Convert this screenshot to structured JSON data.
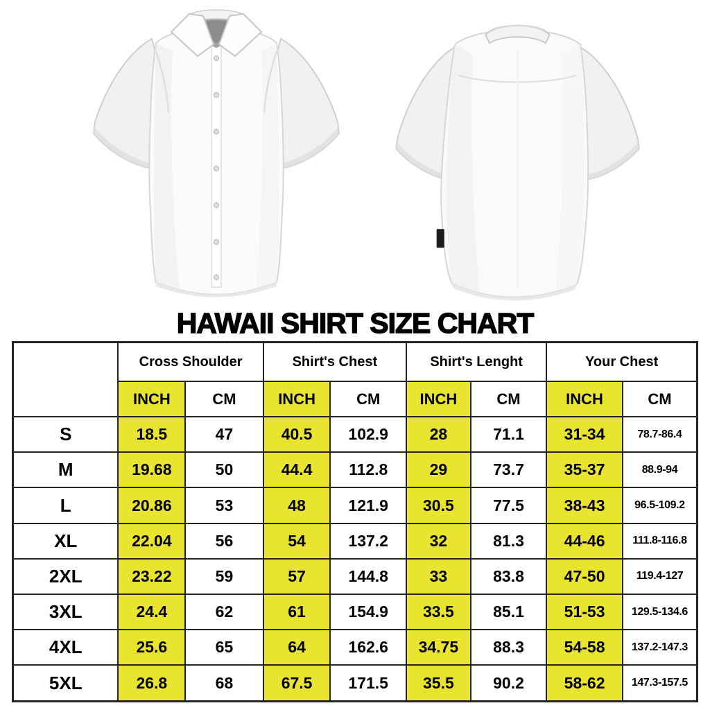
{
  "title": "HAWAII SHIRT SIZE CHART",
  "images": {
    "front_shirt": "white-short-sleeve-button-shirt-front-view",
    "back_shirt": "white-short-sleeve-button-shirt-back-view"
  },
  "colors": {
    "highlight_yellow": "#e9e42f",
    "table_border": "#242424",
    "text": "#000000",
    "background": "#ffffff"
  },
  "size_chart": {
    "corner_label": "",
    "column_groups": [
      "Cross Shoulder",
      "Shirt's Chest",
      "Shirt's Lenght",
      "Your Chest"
    ],
    "unit_labels": [
      "INCH",
      "CM"
    ],
    "rows": [
      {
        "size": "S",
        "values": [
          "18.5",
          "47",
          "40.5",
          "102.9",
          "28",
          "71.1",
          "31-34",
          "78.7-86.4"
        ]
      },
      {
        "size": "M",
        "values": [
          "19.68",
          "50",
          "44.4",
          "112.8",
          "29",
          "73.7",
          "35-37",
          "88.9-94"
        ]
      },
      {
        "size": "L",
        "values": [
          "20.86",
          "53",
          "48",
          "121.9",
          "30.5",
          "77.5",
          "38-43",
          "96.5-109.2"
        ]
      },
      {
        "size": "XL",
        "values": [
          "22.04",
          "56",
          "54",
          "137.2",
          "32",
          "81.3",
          "44-46",
          "111.8-116.8"
        ]
      },
      {
        "size": "2XL",
        "values": [
          "23.22",
          "59",
          "57",
          "144.8",
          "33",
          "83.8",
          "47-50",
          "119.4-127"
        ]
      },
      {
        "size": "3XL",
        "values": [
          "24.4",
          "62",
          "61",
          "154.9",
          "33.5",
          "85.1",
          "51-53",
          "129.5-134.6"
        ]
      },
      {
        "size": "4XL",
        "values": [
          "25.6",
          "65",
          "64",
          "162.6",
          "34.75",
          "88.3",
          "54-58",
          "137.2-147.3"
        ]
      },
      {
        "size": "5XL",
        "values": [
          "26.8",
          "68",
          "67.5",
          "171.5",
          "35.5",
          "90.2",
          "58-62",
          "147.3-157.5"
        ]
      }
    ]
  }
}
